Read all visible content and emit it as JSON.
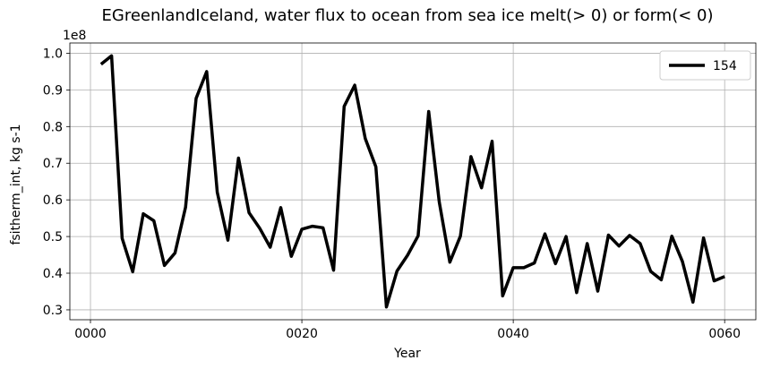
{
  "chart_data": {
    "type": "line",
    "title": "EGreenlandIceland, water flux to ocean from sea ice melt(> 0) or form(< 0)",
    "xlabel": "Year",
    "ylabel": "fsitherm_int, kg s-1",
    "y_offset_label": "1e8",
    "xlim": [
      -1.95,
      62.95
    ],
    "ylim": [
      0.273,
      1.028
    ],
    "x_ticks": [
      0,
      20,
      40,
      60
    ],
    "x_tick_labels": [
      "0000",
      "0020",
      "0040",
      "0060"
    ],
    "y_ticks": [
      0.3,
      0.4,
      0.5,
      0.6,
      0.7,
      0.8,
      0.9,
      1.0
    ],
    "y_tick_labels": [
      "0.3",
      "0.4",
      "0.5",
      "0.6",
      "0.7",
      "0.8",
      "0.9",
      "1.0"
    ],
    "grid": true,
    "legend_position": "top-right",
    "series": [
      {
        "name": "154",
        "color": "#000000",
        "x": [
          1,
          2,
          3,
          4,
          5,
          6,
          7,
          8,
          9,
          10,
          11,
          12,
          13,
          14,
          15,
          16,
          17,
          18,
          19,
          20,
          21,
          22,
          23,
          24,
          25,
          26,
          27,
          28,
          29,
          30,
          31,
          32,
          33,
          34,
          35,
          36,
          37,
          38,
          39,
          40,
          41,
          42,
          43,
          44,
          45,
          46,
          47,
          48,
          49,
          50,
          51,
          52,
          53,
          54,
          55,
          56,
          57,
          58,
          59,
          60
        ],
        "values": [
          0.97,
          0.993,
          0.495,
          0.404,
          0.562,
          0.543,
          0.421,
          0.455,
          0.58,
          0.877,
          0.95,
          0.621,
          0.49,
          0.714,
          0.565,
          0.523,
          0.471,
          0.579,
          0.446,
          0.52,
          0.528,
          0.524,
          0.408,
          0.855,
          0.913,
          0.767,
          0.69,
          0.308,
          0.406,
          0.449,
          0.502,
          0.841,
          0.594,
          0.43,
          0.501,
          0.718,
          0.633,
          0.76,
          0.338,
          0.415,
          0.415,
          0.428,
          0.507,
          0.426,
          0.5,
          0.347,
          0.481,
          0.351,
          0.504,
          0.474,
          0.503,
          0.481,
          0.405,
          0.382,
          0.501,
          0.432,
          0.321,
          0.496,
          0.379,
          0.391
        ]
      }
    ]
  }
}
